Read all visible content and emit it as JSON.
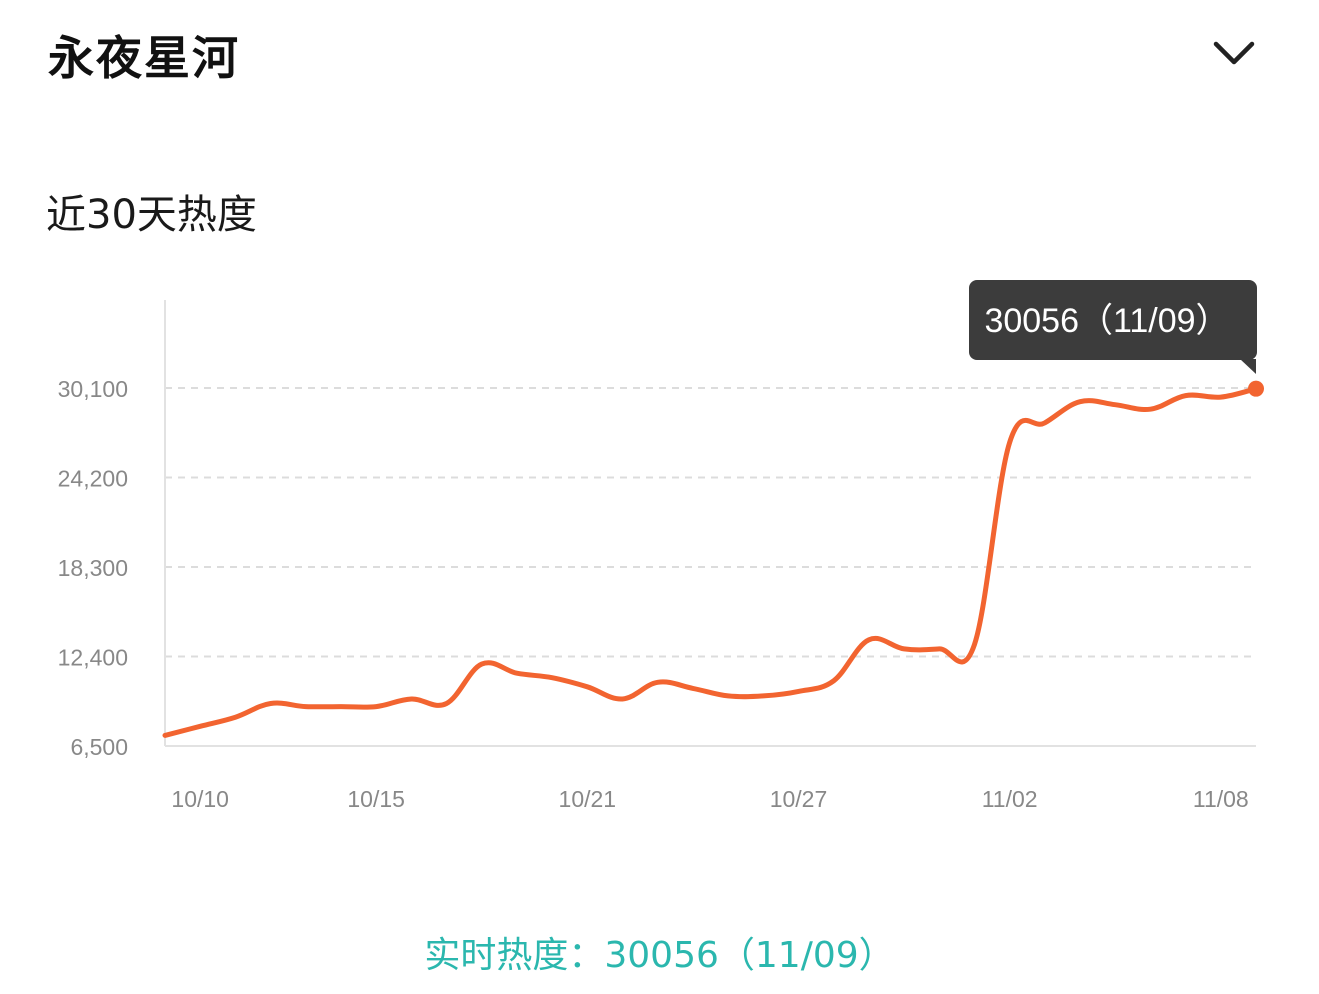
{
  "header": {
    "title": "永夜星河"
  },
  "section": {
    "subtitle": "近30天热度"
  },
  "tooltip": {
    "text": "30056（11/09）"
  },
  "footer": {
    "realtime_label": "实时热度：",
    "realtime_value": "30056（11/09）"
  },
  "colors": {
    "line": "#f26430",
    "tooltip_bg": "#3c3c3c",
    "realtime": "#2bb7ae",
    "grid": "#dcdcdc",
    "axis_text": "#888888"
  },
  "chart_data": {
    "type": "line",
    "title": "",
    "xlabel": "",
    "ylabel": "",
    "ylim": [
      6500,
      30100
    ],
    "yticks": [
      6500,
      12400,
      18300,
      24200,
      30100
    ],
    "ytick_labels": [
      "6,500",
      "12,400",
      "18,300",
      "24,200",
      "30,100"
    ],
    "xtick_labels": [
      "10/10",
      "10/15",
      "10/21",
      "10/27",
      "11/02",
      "11/08"
    ],
    "grid": true,
    "dates": [
      "10/09",
      "10/10",
      "10/11",
      "10/12",
      "10/13",
      "10/14",
      "10/15",
      "10/16",
      "10/17",
      "10/18",
      "10/19",
      "10/20",
      "10/21",
      "10/22",
      "10/23",
      "10/24",
      "10/25",
      "10/26",
      "10/27",
      "10/28",
      "10/29",
      "10/30",
      "10/31",
      "11/01",
      "11/02",
      "11/03",
      "11/04",
      "11/05",
      "11/06",
      "11/07",
      "11/08",
      "11/09"
    ],
    "series": [
      {
        "values": [
          7200,
          7800,
          8400,
          9300,
          9100,
          9100,
          9100,
          9600,
          9300,
          11900,
          11300,
          11000,
          10400,
          9600,
          10700,
          10300,
          9800,
          9800,
          10100,
          10800,
          13500,
          12900,
          12900,
          13200,
          26500,
          27800,
          29200,
          29000,
          28700,
          29600,
          29500,
          30056
        ]
      }
    ],
    "highlight": {
      "date": "11/09",
      "value": 30056
    }
  }
}
